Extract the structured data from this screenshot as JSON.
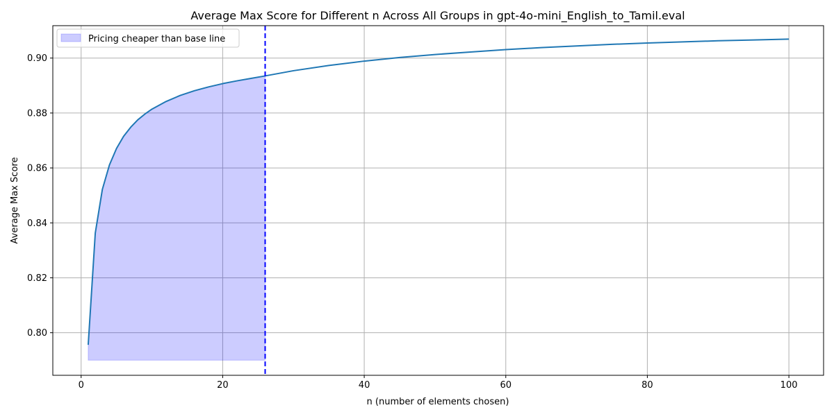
{
  "chart_data": {
    "type": "line",
    "title": "Average Max Score for Different n Across All Groups in gpt-4o-mini_English_to_Tamil.eval",
    "xlabel": "n (number of elements chosen)",
    "ylabel": "Average Max Score",
    "xlim": [
      -4.0,
      104.9
    ],
    "ylim": [
      0.7845,
      0.9118
    ],
    "x_ticks": [
      0,
      20,
      40,
      60,
      80,
      100
    ],
    "x_tick_labels": [
      "0",
      "20",
      "40",
      "60",
      "80",
      "100"
    ],
    "y_ticks": [
      0.8,
      0.82,
      0.84,
      0.86,
      0.88,
      0.9
    ],
    "y_tick_labels": [
      "0.80",
      "0.82",
      "0.84",
      "0.86",
      "0.88",
      "0.90"
    ],
    "grid": true,
    "legend_position": "top-left",
    "series": [
      {
        "name": "",
        "color": "#1f77b4",
        "x": [
          1,
          2,
          3,
          4,
          5,
          6,
          7,
          8,
          9,
          10,
          12,
          14,
          16,
          18,
          20,
          22,
          24,
          26,
          30,
          35,
          40,
          45,
          50,
          55,
          60,
          65,
          70,
          75,
          80,
          85,
          90,
          95,
          100
        ],
        "y": [
          0.7956,
          0.8363,
          0.8522,
          0.8611,
          0.8671,
          0.8715,
          0.8748,
          0.8775,
          0.8796,
          0.8814,
          0.8842,
          0.8864,
          0.8881,
          0.8895,
          0.8907,
          0.8917,
          0.8926,
          0.8935,
          0.8954,
          0.8973,
          0.8989,
          0.9002,
          0.9013,
          0.9022,
          0.9031,
          0.9038,
          0.9044,
          0.905,
          0.9055,
          0.9059,
          0.9063,
          0.9066,
          0.9069
        ]
      }
    ],
    "shaded_region": {
      "label": "Pricing cheaper than base line",
      "color": "#0000ff",
      "opacity": 0.2,
      "x_start": 1,
      "x_end": 26,
      "baseline": 0.79
    },
    "vline": {
      "x": 26,
      "color": "#0000ff",
      "style": "dashed"
    }
  }
}
